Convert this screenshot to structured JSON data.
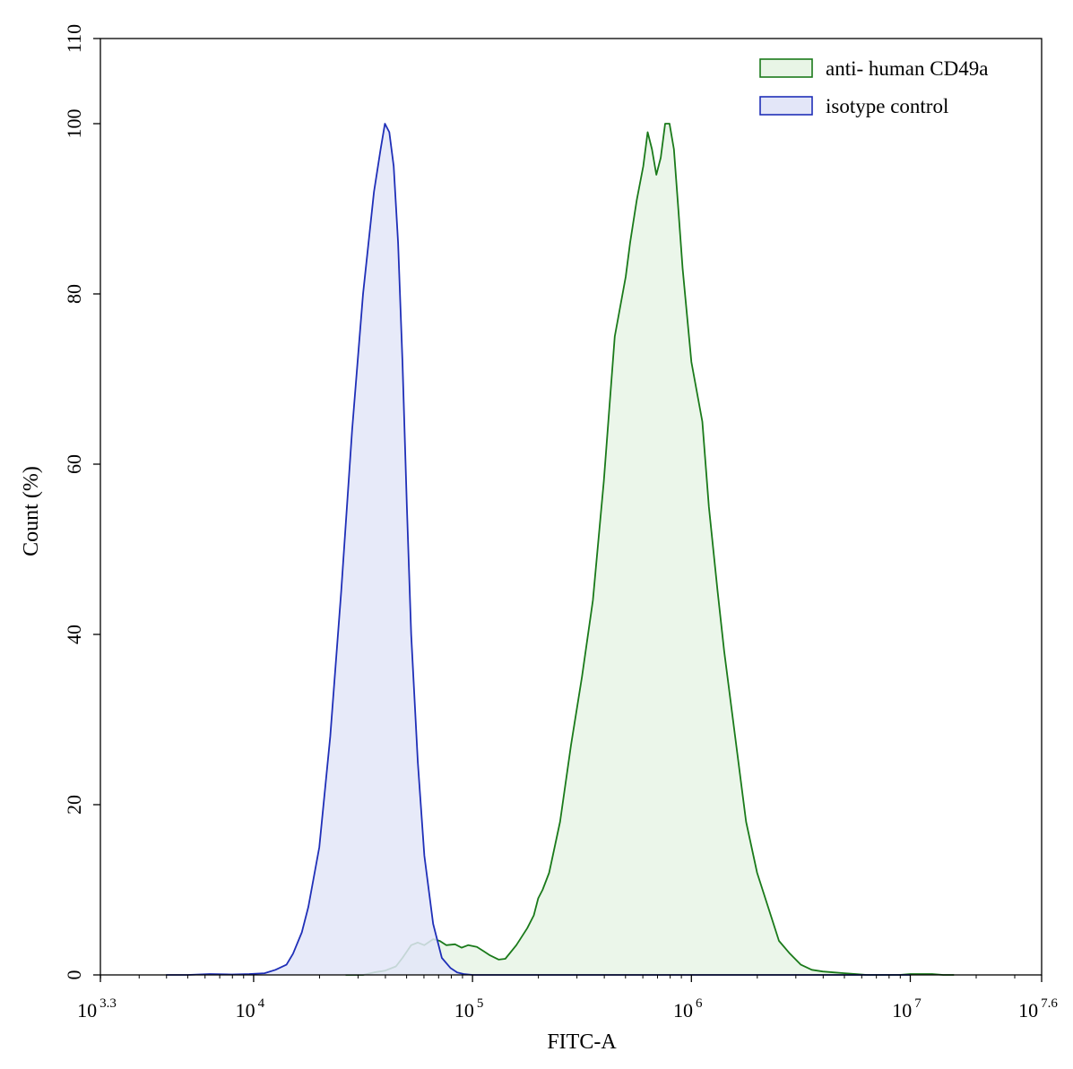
{
  "chart_data": {
    "type": "area",
    "xlabel": "FITC-A",
    "ylabel": "Count  (%)",
    "x_scale": "log10",
    "xlim_log10": [
      3.3,
      7.6
    ],
    "ylim": [
      0,
      110
    ],
    "x_ticks": [
      {
        "base": "10",
        "exp": "3.3",
        "log10": 3.3
      },
      {
        "base": "10",
        "exp": "4",
        "log10": 4
      },
      {
        "base": "10",
        "exp": "5",
        "log10": 5
      },
      {
        "base": "10",
        "exp": "6",
        "log10": 6
      },
      {
        "base": "10",
        "exp": "7",
        "log10": 7
      },
      {
        "base": "10",
        "exp": "7.6",
        "log10": 7.6
      }
    ],
    "y_ticks": [
      "0",
      "20",
      "40",
      "60",
      "80",
      "100",
      "110"
    ],
    "grid": false,
    "legend_position": "top-right",
    "series": [
      {
        "name": "anti- human CD49a",
        "stroke": "#1a7a1a",
        "fill": "#e8f5e6",
        "log10_x": [
          4.42,
          4.5,
          4.55,
          4.6,
          4.65,
          4.68,
          4.72,
          4.75,
          4.78,
          4.82,
          4.85,
          4.88,
          4.92,
          4.95,
          4.98,
          5.02,
          5.05,
          5.08,
          5.12,
          5.15,
          5.2,
          5.25,
          5.28,
          5.3,
          5.32,
          5.35,
          5.4,
          5.45,
          5.5,
          5.55,
          5.6,
          5.65,
          5.7,
          5.72,
          5.75,
          5.78,
          5.8,
          5.82,
          5.84,
          5.86,
          5.88,
          5.9,
          5.92,
          5.94,
          5.96,
          6.0,
          6.05,
          6.08,
          6.12,
          6.15,
          6.2,
          6.25,
          6.3,
          6.35,
          6.4,
          6.45,
          6.5,
          6.55,
          6.6,
          6.65,
          6.7,
          6.75,
          6.8,
          6.85,
          6.9,
          6.95,
          7.0,
          7.05,
          7.1,
          7.15,
          7.2
        ],
        "y": [
          0,
          0,
          0.3,
          0.5,
          1,
          2,
          3.5,
          3.8,
          3.5,
          4.2,
          4.0,
          3.5,
          3.6,
          3.2,
          3.5,
          3.3,
          2.8,
          2.3,
          1.8,
          1.9,
          3.5,
          5.5,
          7,
          9,
          10,
          12,
          18,
          27,
          35,
          44,
          58,
          75,
          82,
          86,
          91,
          95,
          99,
          97,
          94,
          96,
          100,
          100,
          97,
          90,
          83,
          72,
          65,
          55,
          45,
          38,
          28,
          18,
          12,
          8,
          4,
          2.5,
          1.2,
          0.6,
          0.4,
          0.3,
          0.2,
          0.1,
          0,
          0,
          0,
          0,
          0.1,
          0.1,
          0.1,
          0,
          0
        ]
      },
      {
        "name": "isotype control",
        "stroke": "#1f2fb8",
        "fill": "#e3e6f8",
        "log10_x": [
          3.6,
          3.7,
          3.8,
          3.9,
          3.98,
          4.05,
          4.1,
          4.15,
          4.18,
          4.22,
          4.25,
          4.3,
          4.35,
          4.4,
          4.45,
          4.5,
          4.55,
          4.58,
          4.6,
          4.62,
          4.64,
          4.66,
          4.68,
          4.7,
          4.72,
          4.75,
          4.78,
          4.82,
          4.86,
          4.9,
          4.93,
          4.96,
          5.0,
          5.05,
          5.1,
          5.2,
          5.5,
          5.9,
          6.5,
          7.0
        ],
        "y": [
          0,
          0,
          0.1,
          0.05,
          0.1,
          0.2,
          0.6,
          1.2,
          2.5,
          5,
          8,
          15,
          28,
          45,
          64,
          80,
          92,
          97,
          100,
          99,
          95,
          86,
          72,
          55,
          40,
          25,
          14,
          6,
          2,
          0.8,
          0.3,
          0.1,
          0,
          0,
          0,
          0,
          0,
          0,
          0,
          0
        ]
      }
    ]
  }
}
